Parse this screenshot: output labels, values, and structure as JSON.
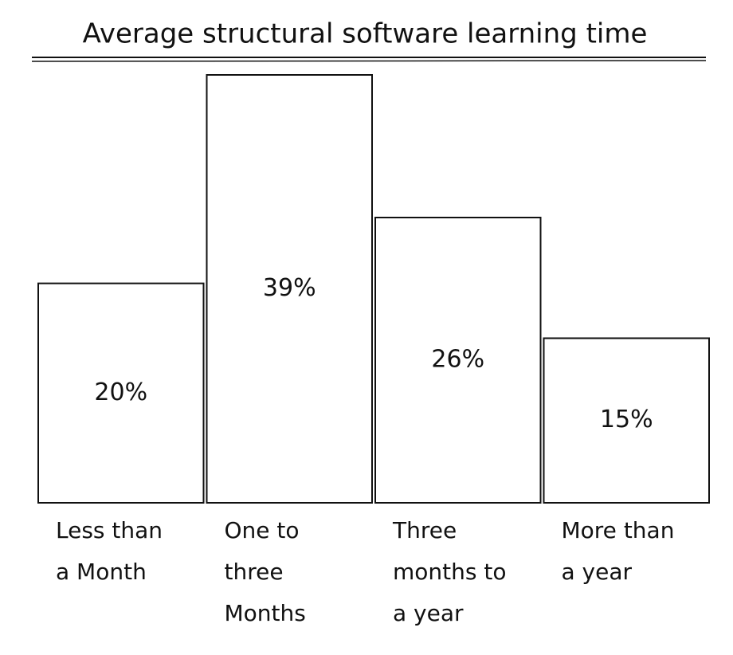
{
  "chart_data": {
    "type": "bar",
    "title": "Average structural software learning time",
    "categories": [
      "Less than a Month",
      "One to three Months",
      "Three months to a year",
      "More than a year"
    ],
    "values": [
      20,
      39,
      26,
      15
    ],
    "value_labels": [
      "20%",
      "39%",
      "26%",
      "15%"
    ],
    "color": "#ffffff"
  }
}
